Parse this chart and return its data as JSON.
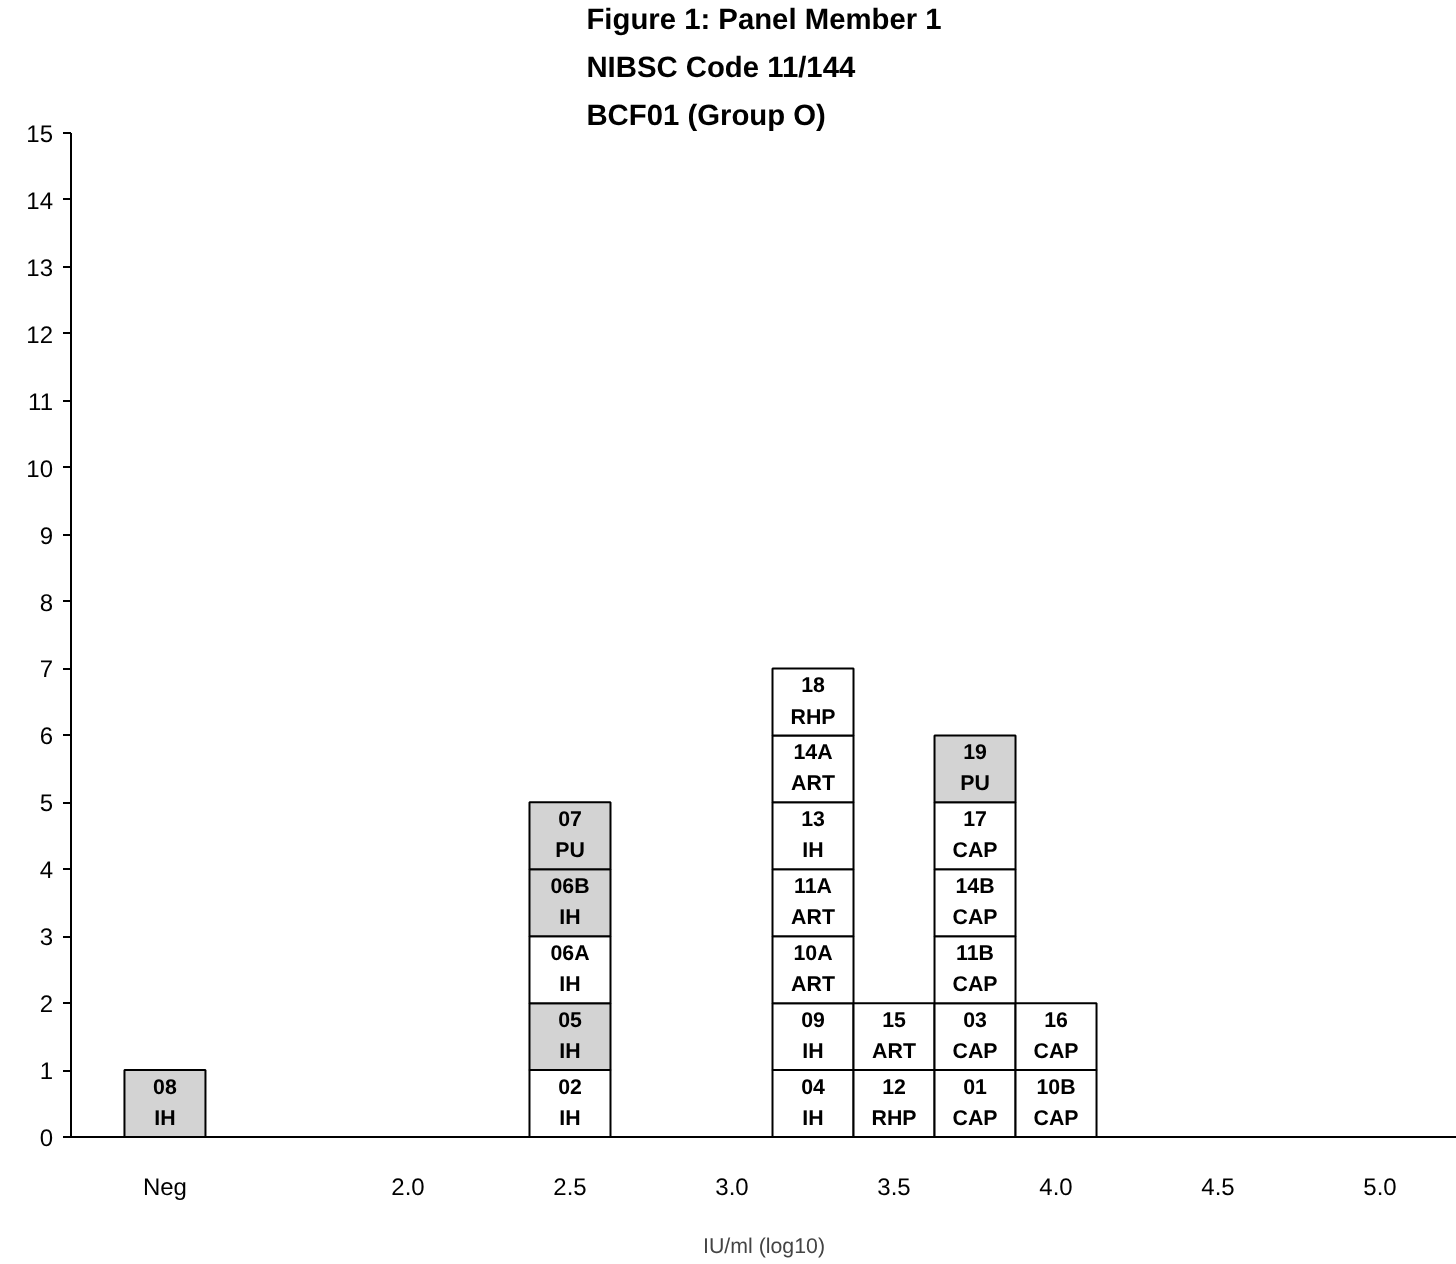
{
  "chart_data": {
    "type": "bar",
    "stacked": true,
    "title": "Figure 1: Panel Member 1\nNIBSC Code 11/144\nBCF01 (Group O)",
    "xlabel": "IU/ml (log10)",
    "categories": [
      "Neg",
      null,
      null,
      "2.0",
      null,
      "2.5",
      null,
      "3.0",
      null,
      "3.5",
      null,
      "4.0",
      null,
      "4.5",
      null,
      "5.0"
    ],
    "ylim": [
      0,
      15
    ],
    "yticks": [
      0,
      1,
      2,
      3,
      4,
      5,
      6,
      7,
      8,
      9,
      10,
      11,
      12,
      13,
      14,
      15
    ],
    "grid": false,
    "series": [
      {
        "name": "08\nIH",
        "color": "#d3d3d3",
        "values": [
          1,
          null,
          null,
          null,
          null,
          null,
          null,
          null,
          null,
          null,
          null,
          null,
          null,
          null,
          null,
          null
        ]
      },
      {
        "name": "02\nIH",
        "color": "#ffffff",
        "values": [
          null,
          null,
          null,
          null,
          null,
          1,
          null,
          null,
          null,
          null,
          null,
          null,
          null,
          null,
          null,
          null
        ]
      },
      {
        "name": "05\nIH",
        "color": "#d3d3d3",
        "values": [
          null,
          null,
          null,
          null,
          null,
          1,
          null,
          null,
          null,
          null,
          null,
          null,
          null,
          null,
          null,
          null
        ]
      },
      {
        "name": "06A\nIH",
        "color": "#ffffff",
        "values": [
          null,
          null,
          null,
          null,
          null,
          1,
          null,
          null,
          null,
          null,
          null,
          null,
          null,
          null,
          null,
          null
        ]
      },
      {
        "name": "06B\nIH",
        "color": "#d3d3d3",
        "values": [
          null,
          null,
          null,
          null,
          null,
          1,
          null,
          null,
          null,
          null,
          null,
          null,
          null,
          null,
          null,
          null
        ]
      },
      {
        "name": "07\nPU",
        "color": "#d3d3d3",
        "values": [
          null,
          null,
          null,
          null,
          null,
          1,
          null,
          null,
          null,
          null,
          null,
          null,
          null,
          null,
          null,
          null
        ]
      },
      {
        "name": "04\nIH",
        "color": "#ffffff",
        "values": [
          null,
          null,
          null,
          null,
          null,
          null,
          null,
          null,
          1,
          null,
          null,
          null,
          null,
          null,
          null,
          null
        ]
      },
      {
        "name": "09\nIH",
        "color": "#ffffff",
        "values": [
          null,
          null,
          null,
          null,
          null,
          null,
          null,
          null,
          1,
          null,
          null,
          null,
          null,
          null,
          null,
          null
        ]
      },
      {
        "name": "10A\nART",
        "color": "#ffffff",
        "values": [
          null,
          null,
          null,
          null,
          null,
          null,
          null,
          null,
          1,
          null,
          null,
          null,
          null,
          null,
          null,
          null
        ]
      },
      {
        "name": "11A\nART",
        "color": "#ffffff",
        "values": [
          null,
          null,
          null,
          null,
          null,
          null,
          null,
          null,
          1,
          null,
          null,
          null,
          null,
          null,
          null,
          null
        ]
      },
      {
        "name": "13\nIH",
        "color": "#ffffff",
        "values": [
          null,
          null,
          null,
          null,
          null,
          null,
          null,
          null,
          1,
          null,
          null,
          null,
          null,
          null,
          null,
          null
        ]
      },
      {
        "name": "14A\nART",
        "color": "#ffffff",
        "values": [
          null,
          null,
          null,
          null,
          null,
          null,
          null,
          null,
          1,
          null,
          null,
          null,
          null,
          null,
          null,
          null
        ]
      },
      {
        "name": "18\nRHP",
        "color": "#ffffff",
        "values": [
          null,
          null,
          null,
          null,
          null,
          null,
          null,
          null,
          1,
          null,
          null,
          null,
          null,
          null,
          null,
          null
        ]
      },
      {
        "name": "12\nRHP",
        "color": "#ffffff",
        "values": [
          null,
          null,
          null,
          null,
          null,
          null,
          null,
          null,
          null,
          1,
          null,
          null,
          null,
          null,
          null,
          null
        ]
      },
      {
        "name": "15\nART",
        "color": "#ffffff",
        "values": [
          null,
          null,
          null,
          null,
          null,
          null,
          null,
          null,
          null,
          1,
          null,
          null,
          null,
          null,
          null,
          null
        ]
      },
      {
        "name": "01\nCAP",
        "color": "#ffffff",
        "values": [
          null,
          null,
          null,
          null,
          null,
          null,
          null,
          null,
          null,
          null,
          1,
          null,
          null,
          null,
          null,
          null
        ]
      },
      {
        "name": "03\nCAP",
        "color": "#ffffff",
        "values": [
          null,
          null,
          null,
          null,
          null,
          null,
          null,
          null,
          null,
          null,
          1,
          null,
          null,
          null,
          null,
          null
        ]
      },
      {
        "name": "11B\nCAP",
        "color": "#ffffff",
        "values": [
          null,
          null,
          null,
          null,
          null,
          null,
          null,
          null,
          null,
          null,
          1,
          null,
          null,
          null,
          null,
          null
        ]
      },
      {
        "name": "14B\nCAP",
        "color": "#ffffff",
        "values": [
          null,
          null,
          null,
          null,
          null,
          null,
          null,
          null,
          null,
          null,
          1,
          null,
          null,
          null,
          null,
          null
        ]
      },
      {
        "name": "17\nCAP",
        "color": "#ffffff",
        "values": [
          null,
          null,
          null,
          null,
          null,
          null,
          null,
          null,
          null,
          null,
          1,
          null,
          null,
          null,
          null,
          null
        ]
      },
      {
        "name": "19\nPU",
        "color": "#d3d3d3",
        "values": [
          null,
          null,
          null,
          null,
          null,
          null,
          null,
          null,
          null,
          null,
          1,
          null,
          null,
          null,
          null,
          null
        ]
      },
      {
        "name": "10B\nCAP",
        "color": "#ffffff",
        "values": [
          null,
          null,
          null,
          null,
          null,
          null,
          null,
          null,
          null,
          null,
          null,
          1,
          null,
          null,
          null,
          null
        ]
      },
      {
        "name": "16\nCAP",
        "color": "#ffffff",
        "values": [
          null,
          null,
          null,
          null,
          null,
          null,
          null,
          null,
          null,
          null,
          null,
          1,
          null,
          null,
          null,
          null
        ]
      }
    ]
  }
}
